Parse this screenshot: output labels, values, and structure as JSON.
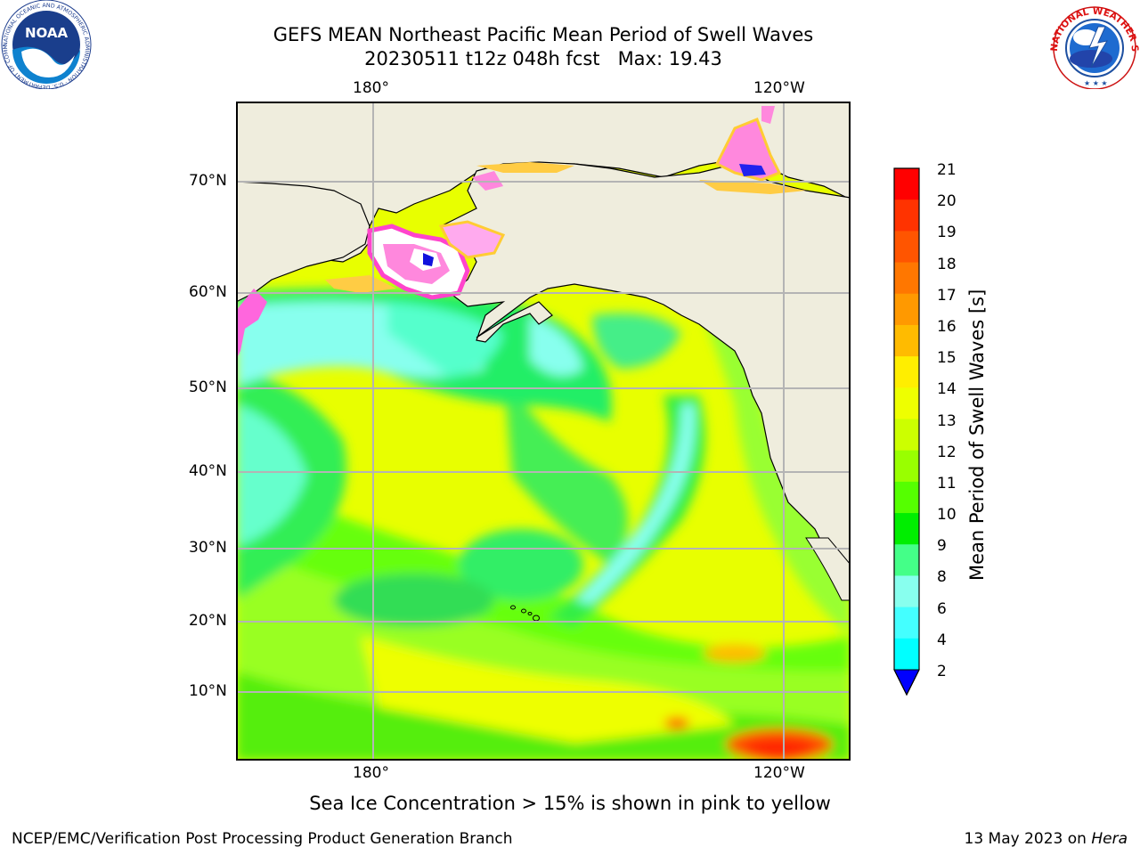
{
  "header": {
    "title_line1": "GEFS MEAN Northeast Pacific Mean Period of Swell Waves",
    "title_line2": "20230511 t12z 048h fcst   Max: 19.43",
    "noaa_logo_text": "NOAA",
    "noaa_ring_text": "NATIONAL OCEANIC AND ATMOSPHERIC ADMINISTRATION · U.S. DEPARTMENT OF COMMERCE",
    "nws_ring_text": "NATIONAL WEATHER SERVICE"
  },
  "map": {
    "lon_labels_top": [
      "180°",
      "120°W"
    ],
    "lon_labels_bottom": [
      "180°",
      "120°W"
    ],
    "lat_labels": [
      "70°N",
      "60°N",
      "50°N",
      "40°N",
      "30°N",
      "20°N",
      "10°N"
    ]
  },
  "colorbar": {
    "label": "Mean Period of Swell Waves [s]",
    "ticks": [
      "21",
      "20",
      "19",
      "18",
      "17",
      "16",
      "15",
      "14",
      "13",
      "12",
      "11",
      "10",
      "9",
      "8",
      "6",
      "4",
      "2"
    ],
    "colors": [
      "#ff0000",
      "#ff3300",
      "#ff5500",
      "#ff7700",
      "#ff9900",
      "#ffbb00",
      "#ffee00",
      "#eeff00",
      "#ccff00",
      "#99ff00",
      "#55ff00",
      "#00ee00",
      "#44ff88",
      "#88ffee",
      "#44ffff",
      "#00ffff",
      "#00ccff",
      "#0066ff"
    ],
    "extend_color": "#0000ff"
  },
  "note": "Sea Ice Concentration > 15% is shown in pink to yellow",
  "footer": {
    "left": "NCEP/EMC/Verification Post Processing Product Generation Branch",
    "right_prefix": "13 May 2023 on ",
    "right_host": "Hera"
  }
}
